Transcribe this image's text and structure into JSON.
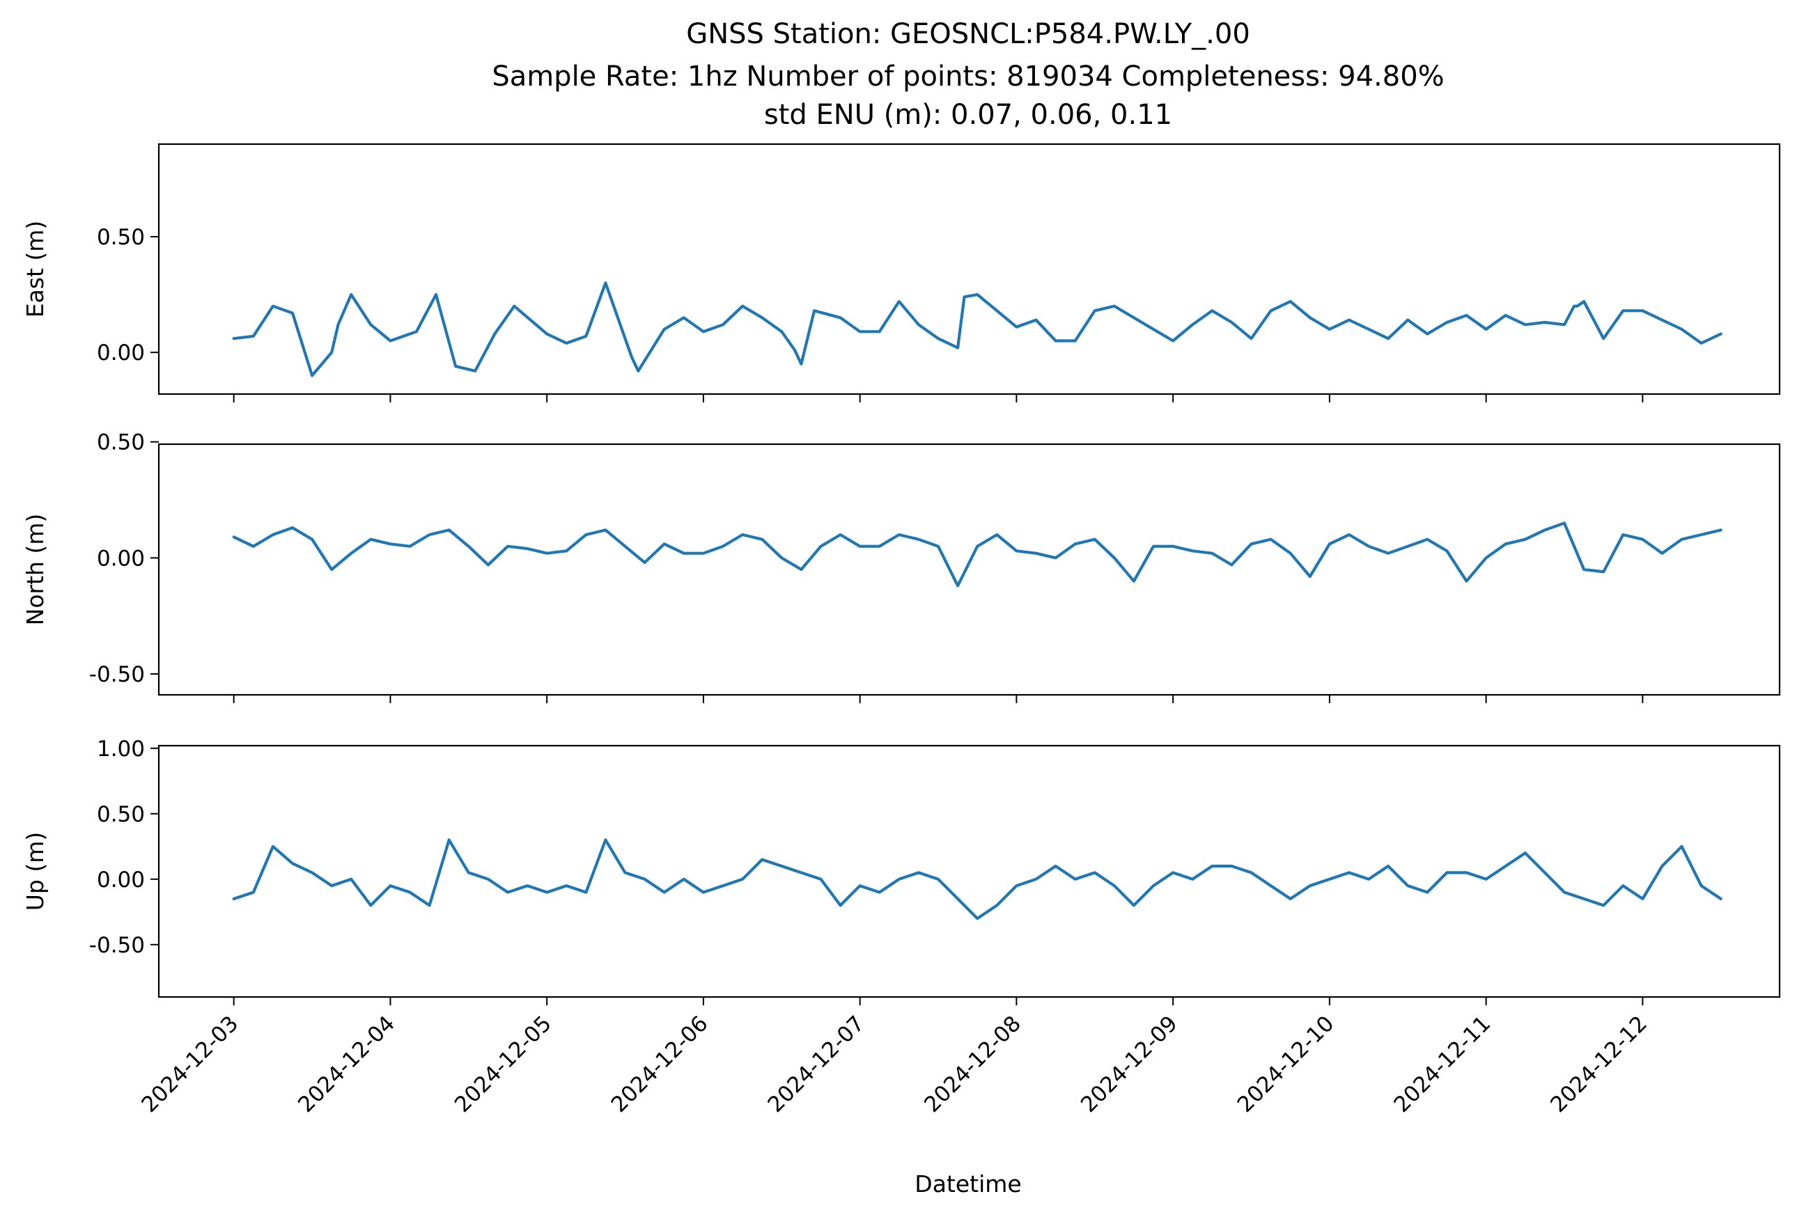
{
  "title_lines": [
    "GNSS Station: GEOSNCL:P584.PW.LY_.00",
    "Sample Rate: 1hz   Number of points: 819034    Completeness:  94.80%",
    "std ENU (m):  0.07, 0.06, 0.11"
  ],
  "colors": {
    "series": "#1f77b4"
  },
  "chart_data": [
    {
      "type": "line",
      "ylabel": "East (m)",
      "xlim": [
        "2024-12-02T12:30",
        "2024-12-12T21:00"
      ],
      "ylim": [
        -0.18,
        0.9
      ],
      "yticks": [
        0.0,
        0.5
      ],
      "ytick_labels": [
        "0.00",
        "0.50"
      ],
      "grid": false,
      "series": [
        {
          "x": [
            "2024-12-03T00:00",
            "2024-12-03T03:00",
            "2024-12-03T06:00",
            "2024-12-03T09:00",
            "2024-12-03T12:00",
            "2024-12-03T15:00",
            "2024-12-03T16:00",
            "2024-12-03T18:00",
            "2024-12-03T21:00",
            "2024-12-04T00:00",
            "2024-12-04T04:00",
            "2024-12-04T07:00",
            "2024-12-04T10:00",
            "2024-12-04T13:00",
            "2024-12-04T16:00",
            "2024-12-04T19:00",
            "2024-12-05T00:00",
            "2024-12-05T03:00",
            "2024-12-05T06:00",
            "2024-12-05T09:00",
            "2024-12-05T13:00",
            "2024-12-05T14:00",
            "2024-12-05T18:00",
            "2024-12-05T21:00",
            "2024-12-06T00:00",
            "2024-12-06T03:00",
            "2024-12-06T06:00",
            "2024-12-06T09:00",
            "2024-12-06T12:00",
            "2024-12-06T14:00",
            "2024-12-06T15:00",
            "2024-12-06T17:00",
            "2024-12-06T21:00",
            "2024-12-07T00:00",
            "2024-12-07T03:00",
            "2024-12-07T06:00",
            "2024-12-07T09:00",
            "2024-12-07T12:00",
            "2024-12-07T15:00",
            "2024-12-07T16:00",
            "2024-12-07T18:00",
            "2024-12-07T21:00",
            "2024-12-08T00:00",
            "2024-12-08T03:00",
            "2024-12-08T06:00",
            "2024-12-08T09:00",
            "2024-12-08T12:00",
            "2024-12-08T15:00",
            "2024-12-08T18:00",
            "2024-12-08T21:00",
            "2024-12-09T00:00",
            "2024-12-09T03:00",
            "2024-12-09T06:00",
            "2024-12-09T09:00",
            "2024-12-09T12:00",
            "2024-12-09T15:00",
            "2024-12-09T18:00",
            "2024-12-09T21:00",
            "2024-12-10T00:00",
            "2024-12-10T03:00",
            "2024-12-10T06:00",
            "2024-12-10T09:00",
            "2024-12-10T12:00",
            "2024-12-10T15:00",
            "2024-12-10T18:00",
            "2024-12-10T21:00",
            "2024-12-11T00:00",
            "2024-12-11T03:00",
            "2024-12-11T06:00",
            "2024-12-11T09:00",
            "2024-12-11T12:00",
            "2024-12-11T13:30",
            "2024-12-11T14:00",
            "2024-12-11T15:00",
            "2024-12-11T18:00",
            "2024-12-11T21:00",
            "2024-12-12T00:00",
            "2024-12-12T03:00",
            "2024-12-12T06:00",
            "2024-12-12T09:00",
            "2024-12-12T12:00"
          ],
          "y": [
            0.06,
            0.07,
            0.2,
            0.17,
            -0.1,
            0.0,
            0.12,
            0.25,
            0.12,
            0.05,
            0.09,
            0.25,
            -0.06,
            -0.08,
            0.08,
            0.2,
            0.08,
            0.04,
            0.07,
            0.3,
            -0.02,
            -0.08,
            0.1,
            0.15,
            0.09,
            0.12,
            0.2,
            0.15,
            0.09,
            0.01,
            -0.05,
            0.18,
            0.15,
            0.09,
            0.09,
            0.22,
            0.12,
            0.06,
            0.02,
            0.24,
            0.25,
            0.18,
            0.11,
            0.14,
            0.05,
            0.05,
            0.18,
            0.2,
            0.15,
            0.1,
            0.05,
            0.12,
            0.18,
            0.13,
            0.06,
            0.18,
            0.22,
            0.15,
            0.1,
            0.14,
            0.1,
            0.06,
            0.14,
            0.08,
            0.13,
            0.16,
            0.1,
            0.16,
            0.12,
            0.13,
            0.12,
            0.2,
            0.2,
            0.22,
            0.06,
            0.18,
            0.18,
            0.14,
            0.1,
            0.04,
            0.08
          ]
        }
      ]
    },
    {
      "type": "line",
      "ylabel": "North (m)",
      "xlim": [
        "2024-12-02T12:30",
        "2024-12-12T21:00"
      ],
      "ylim": [
        -0.59,
        0.49
      ],
      "yticks": [
        -0.5,
        0.0,
        0.5
      ],
      "ytick_labels": [
        "-0.50",
        "0.00",
        "0.50"
      ],
      "grid": false,
      "series": [
        {
          "x": [
            "2024-12-03T00:00",
            "2024-12-03T03:00",
            "2024-12-03T06:00",
            "2024-12-03T09:00",
            "2024-12-03T12:00",
            "2024-12-03T15:00",
            "2024-12-03T18:00",
            "2024-12-03T21:00",
            "2024-12-04T00:00",
            "2024-12-04T03:00",
            "2024-12-04T06:00",
            "2024-12-04T09:00",
            "2024-12-04T12:00",
            "2024-12-04T15:00",
            "2024-12-04T18:00",
            "2024-12-04T21:00",
            "2024-12-05T00:00",
            "2024-12-05T03:00",
            "2024-12-05T06:00",
            "2024-12-05T09:00",
            "2024-12-05T12:00",
            "2024-12-05T15:00",
            "2024-12-05T18:00",
            "2024-12-05T21:00",
            "2024-12-06T00:00",
            "2024-12-06T03:00",
            "2024-12-06T06:00",
            "2024-12-06T09:00",
            "2024-12-06T12:00",
            "2024-12-06T15:00",
            "2024-12-06T18:00",
            "2024-12-06T21:00",
            "2024-12-07T00:00",
            "2024-12-07T03:00",
            "2024-12-07T06:00",
            "2024-12-07T09:00",
            "2024-12-07T12:00",
            "2024-12-07T15:00",
            "2024-12-07T18:00",
            "2024-12-07T21:00",
            "2024-12-08T00:00",
            "2024-12-08T03:00",
            "2024-12-08T06:00",
            "2024-12-08T09:00",
            "2024-12-08T12:00",
            "2024-12-08T15:00",
            "2024-12-08T18:00",
            "2024-12-08T21:00",
            "2024-12-09T00:00",
            "2024-12-09T03:00",
            "2024-12-09T06:00",
            "2024-12-09T09:00",
            "2024-12-09T12:00",
            "2024-12-09T15:00",
            "2024-12-09T18:00",
            "2024-12-09T21:00",
            "2024-12-10T00:00",
            "2024-12-10T03:00",
            "2024-12-10T06:00",
            "2024-12-10T09:00",
            "2024-12-10T12:00",
            "2024-12-10T15:00",
            "2024-12-10T18:00",
            "2024-12-10T21:00",
            "2024-12-11T00:00",
            "2024-12-11T03:00",
            "2024-12-11T06:00",
            "2024-12-11T09:00",
            "2024-12-11T12:00",
            "2024-12-11T15:00",
            "2024-12-11T18:00",
            "2024-12-11T21:00",
            "2024-12-12T00:00",
            "2024-12-12T03:00",
            "2024-12-12T06:00",
            "2024-12-12T09:00",
            "2024-12-12T12:00"
          ],
          "y": [
            0.09,
            0.05,
            0.1,
            0.13,
            0.08,
            -0.05,
            0.02,
            0.08,
            0.06,
            0.05,
            0.1,
            0.12,
            0.05,
            -0.03,
            0.05,
            0.04,
            0.02,
            0.03,
            0.1,
            0.12,
            0.05,
            -0.02,
            0.06,
            0.02,
            0.02,
            0.05,
            0.1,
            0.08,
            0.0,
            -0.05,
            0.05,
            0.1,
            0.05,
            0.05,
            0.1,
            0.08,
            0.05,
            -0.12,
            0.05,
            0.1,
            0.03,
            0.02,
            0.0,
            0.06,
            0.08,
            0.0,
            -0.1,
            0.05,
            0.05,
            0.03,
            0.02,
            -0.03,
            0.06,
            0.08,
            0.02,
            -0.08,
            0.06,
            0.1,
            0.05,
            0.02,
            0.05,
            0.08,
            0.03,
            -0.1,
            0.0,
            0.06,
            0.08,
            0.12,
            0.15,
            -0.05,
            -0.06,
            0.1,
            0.08,
            0.02,
            0.08,
            0.1,
            0.12
          ]
        }
      ]
    },
    {
      "type": "line",
      "ylabel": "Up (m)",
      "xlim": [
        "2024-12-02T12:30",
        "2024-12-12T21:00"
      ],
      "ylim": [
        -0.9,
        1.02
      ],
      "yticks": [
        -0.5,
        0.0,
        0.5,
        1.0
      ],
      "ytick_labels": [
        "-0.50",
        "0.00",
        "0.50",
        "1.00"
      ],
      "grid": false,
      "series": [
        {
          "x": [
            "2024-12-03T00:00",
            "2024-12-03T03:00",
            "2024-12-03T06:00",
            "2024-12-03T09:00",
            "2024-12-03T12:00",
            "2024-12-03T15:00",
            "2024-12-03T18:00",
            "2024-12-03T21:00",
            "2024-12-04T00:00",
            "2024-12-04T03:00",
            "2024-12-04T06:00",
            "2024-12-04T09:00",
            "2024-12-04T12:00",
            "2024-12-04T15:00",
            "2024-12-04T18:00",
            "2024-12-04T21:00",
            "2024-12-05T00:00",
            "2024-12-05T03:00",
            "2024-12-05T06:00",
            "2024-12-05T09:00",
            "2024-12-05T12:00",
            "2024-12-05T15:00",
            "2024-12-05T18:00",
            "2024-12-05T21:00",
            "2024-12-06T00:00",
            "2024-12-06T03:00",
            "2024-12-06T06:00",
            "2024-12-06T09:00",
            "2024-12-06T12:00",
            "2024-12-06T15:00",
            "2024-12-06T18:00",
            "2024-12-06T21:00",
            "2024-12-07T00:00",
            "2024-12-07T03:00",
            "2024-12-07T06:00",
            "2024-12-07T09:00",
            "2024-12-07T12:00",
            "2024-12-07T15:00",
            "2024-12-07T18:00",
            "2024-12-07T21:00",
            "2024-12-08T00:00",
            "2024-12-08T03:00",
            "2024-12-08T06:00",
            "2024-12-08T09:00",
            "2024-12-08T12:00",
            "2024-12-08T15:00",
            "2024-12-08T18:00",
            "2024-12-08T21:00",
            "2024-12-09T00:00",
            "2024-12-09T03:00",
            "2024-12-09T06:00",
            "2024-12-09T09:00",
            "2024-12-09T12:00",
            "2024-12-09T15:00",
            "2024-12-09T18:00",
            "2024-12-09T21:00",
            "2024-12-10T00:00",
            "2024-12-10T03:00",
            "2024-12-10T06:00",
            "2024-12-10T09:00",
            "2024-12-10T12:00",
            "2024-12-10T15:00",
            "2024-12-10T18:00",
            "2024-12-10T21:00",
            "2024-12-11T00:00",
            "2024-12-11T03:00",
            "2024-12-11T06:00",
            "2024-12-11T09:00",
            "2024-12-11T12:00",
            "2024-12-11T15:00",
            "2024-12-11T18:00",
            "2024-12-11T21:00",
            "2024-12-12T00:00",
            "2024-12-12T03:00",
            "2024-12-12T06:00",
            "2024-12-12T09:00",
            "2024-12-12T12:00"
          ],
          "y": [
            -0.15,
            -0.1,
            0.25,
            0.12,
            0.05,
            -0.05,
            0.0,
            -0.2,
            -0.05,
            -0.1,
            -0.2,
            0.3,
            0.05,
            0.0,
            -0.1,
            -0.05,
            -0.1,
            -0.05,
            -0.1,
            0.3,
            0.05,
            0.0,
            -0.1,
            0.0,
            -0.1,
            -0.05,
            0.0,
            0.15,
            0.1,
            0.05,
            0.0,
            -0.2,
            -0.05,
            -0.1,
            0.0,
            0.05,
            0.0,
            -0.15,
            -0.3,
            -0.2,
            -0.05,
            0.0,
            0.1,
            0.0,
            0.05,
            -0.05,
            -0.2,
            -0.05,
            0.05,
            0.0,
            0.1,
            0.1,
            0.05,
            -0.05,
            -0.15,
            -0.05,
            0.0,
            0.05,
            0.0,
            0.1,
            -0.05,
            -0.1,
            0.05,
            0.05,
            0.0,
            0.1,
            0.2,
            0.05,
            -0.1,
            -0.15,
            -0.2,
            -0.05,
            -0.15,
            0.1,
            0.25,
            -0.05,
            -0.15
          ]
        }
      ]
    }
  ],
  "x_axis": {
    "label": "Datetime",
    "ticks": [
      "2024-12-03",
      "2024-12-04",
      "2024-12-05",
      "2024-12-06",
      "2024-12-07",
      "2024-12-08",
      "2024-12-09",
      "2024-12-10",
      "2024-12-11",
      "2024-12-12"
    ]
  }
}
